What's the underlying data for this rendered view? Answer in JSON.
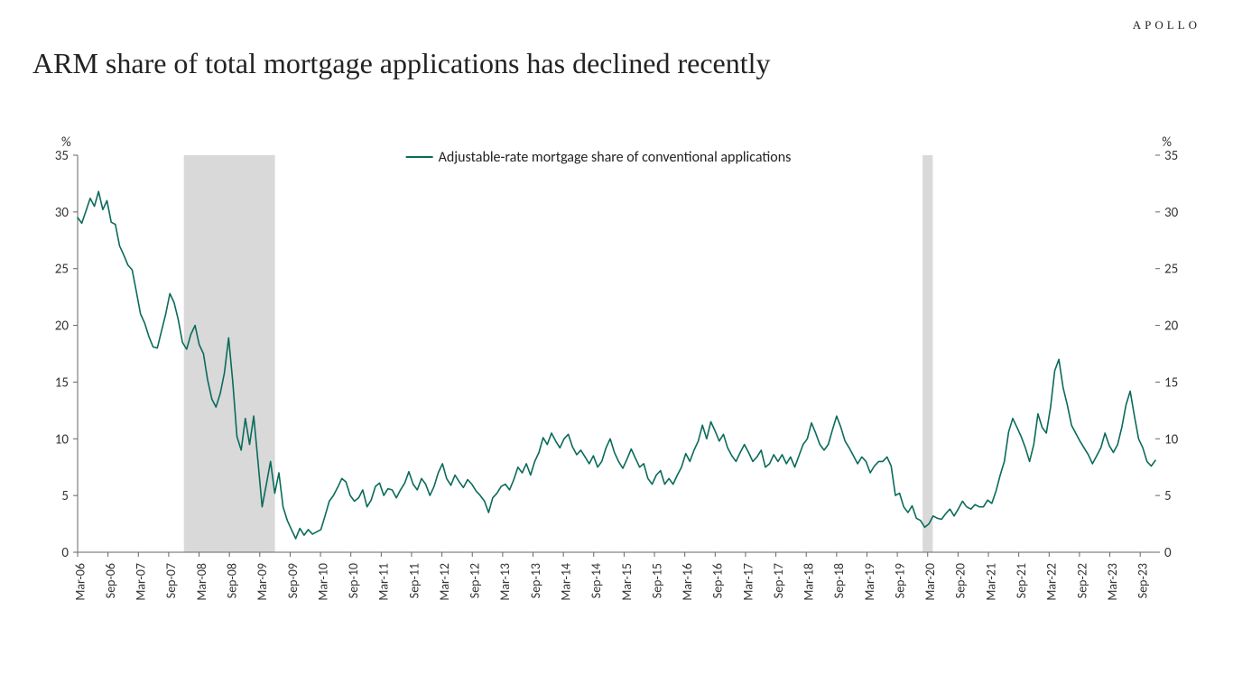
{
  "brand": "APOLLO",
  "title": "ARM share of total mortgage applications has declined recently",
  "chart": {
    "type": "line",
    "legend_label": "Adjustable-rate mortgage share of conventional applications",
    "line_color": "#0a6b5b",
    "line_width": 1.6,
    "background_color": "#ffffff",
    "axis_color": "#666666",
    "recession_fill": "#d9d9d9",
    "y_unit_label": "%",
    "ylim": [
      0,
      35
    ],
    "ytick_step": 5,
    "yticks": [
      0,
      5,
      10,
      15,
      20,
      25,
      30,
      35
    ],
    "x_categories": [
      "Mar-06",
      "Sep-06",
      "Mar-07",
      "Sep-07",
      "Mar-08",
      "Sep-08",
      "Mar-09",
      "Sep-09",
      "Mar-10",
      "Sep-10",
      "Mar-11",
      "Sep-11",
      "Mar-12",
      "Sep-12",
      "Mar-13",
      "Sep-13",
      "Mar-14",
      "Sep-14",
      "Mar-15",
      "Sep-15",
      "Mar-16",
      "Sep-16",
      "Mar-17",
      "Sep-17",
      "Mar-18",
      "Sep-18",
      "Mar-19",
      "Sep-19",
      "Mar-20",
      "Sep-20",
      "Mar-21",
      "Sep-21",
      "Mar-22",
      "Sep-22",
      "Mar-23",
      "Sep-23"
    ],
    "recession_bands": [
      {
        "start": "Dec-07",
        "end": "Jun-09"
      },
      {
        "start": "Feb-20",
        "end": "Apr-20"
      }
    ],
    "series": [
      29.5,
      29.0,
      30.1,
      31.2,
      30.5,
      31.8,
      30.2,
      31.0,
      29.1,
      28.9,
      27.0,
      26.2,
      25.3,
      24.9,
      23.0,
      21.0,
      20.2,
      19.0,
      18.1,
      18.0,
      19.5,
      21.0,
      22.8,
      22.0,
      20.5,
      18.5,
      17.9,
      19.2,
      20.0,
      18.3,
      17.5,
      15.2,
      13.5,
      12.8,
      14.0,
      15.8,
      18.9,
      15.0,
      10.2,
      9.0,
      11.8,
      9.5,
      12.0,
      8.0,
      4.0,
      6.0,
      8.0,
      5.2,
      7.0,
      4.0,
      2.8,
      2.0,
      1.2,
      2.1,
      1.5,
      2.0,
      1.6,
      1.8,
      2.0,
      3.2,
      4.5,
      5.0,
      5.7,
      6.5,
      6.2,
      5.0,
      4.5,
      4.8,
      5.5,
      4.0,
      4.6,
      5.8,
      6.1,
      5.0,
      5.6,
      5.5,
      4.8,
      5.5,
      6.1,
      7.1,
      6.0,
      5.5,
      6.5,
      6.0,
      5.0,
      5.8,
      7.0,
      7.8,
      6.5,
      5.9,
      6.8,
      6.2,
      5.7,
      6.4,
      6.0,
      5.4,
      5.0,
      4.5,
      3.5,
      4.8,
      5.2,
      5.8,
      6.0,
      5.5,
      6.4,
      7.5,
      7.0,
      7.8,
      6.8,
      8.0,
      8.8,
      10.1,
      9.5,
      10.5,
      9.8,
      9.2,
      10.0,
      10.4,
      9.3,
      8.6,
      9.0,
      8.4,
      7.8,
      8.5,
      7.5,
      8.0,
      9.2,
      10.0,
      8.8,
      8.0,
      7.4,
      8.2,
      9.1,
      8.3,
      7.5,
      7.8,
      6.5,
      6.0,
      6.8,
      7.2,
      6.0,
      6.5,
      6.0,
      6.8,
      7.5,
      8.7,
      8.0,
      9.0,
      9.8,
      11.2,
      10.0,
      11.5,
      10.7,
      9.8,
      10.4,
      9.2,
      8.5,
      8.0,
      8.8,
      9.5,
      8.8,
      8.0,
      8.4,
      9.0,
      7.5,
      7.8,
      8.6,
      8.0,
      8.6,
      7.8,
      8.4,
      7.5,
      8.5,
      9.5,
      10.0,
      11.4,
      10.5,
      9.5,
      9.0,
      9.5,
      10.8,
      12.0,
      11.0,
      9.8,
      9.2,
      8.5,
      7.8,
      8.4,
      8.0,
      7.0,
      7.6,
      8.0,
      8.0,
      8.4,
      7.6,
      5.0,
      5.2,
      4.0,
      3.5,
      4.1,
      3.0,
      2.8,
      2.2,
      2.5,
      3.2,
      3.0,
      2.9,
      3.4,
      3.8,
      3.2,
      3.8,
      4.5,
      4.0,
      3.8,
      4.2,
      4.0,
      4.0,
      4.6,
      4.3,
      5.4,
      6.8,
      8.0,
      10.6,
      11.8,
      11.0,
      10.2,
      9.2,
      8.0,
      9.5,
      12.2,
      11.0,
      10.5,
      12.8,
      16.0,
      17.0,
      14.5,
      13.0,
      11.2,
      10.5,
      9.8,
      9.2,
      8.6,
      7.8,
      8.5,
      9.2,
      10.5,
      9.4,
      8.8,
      9.5,
      11.0,
      13.0,
      14.2,
      12.0,
      10.0,
      9.2,
      8.0,
      7.6,
      8.1
    ],
    "series_start": "Mar-06",
    "series_end_approx": "Dec-23",
    "legend_fontsize": 16,
    "tick_fontsize": 15,
    "xtick_fontsize": 14,
    "xtick_rotation_deg": 90
  }
}
